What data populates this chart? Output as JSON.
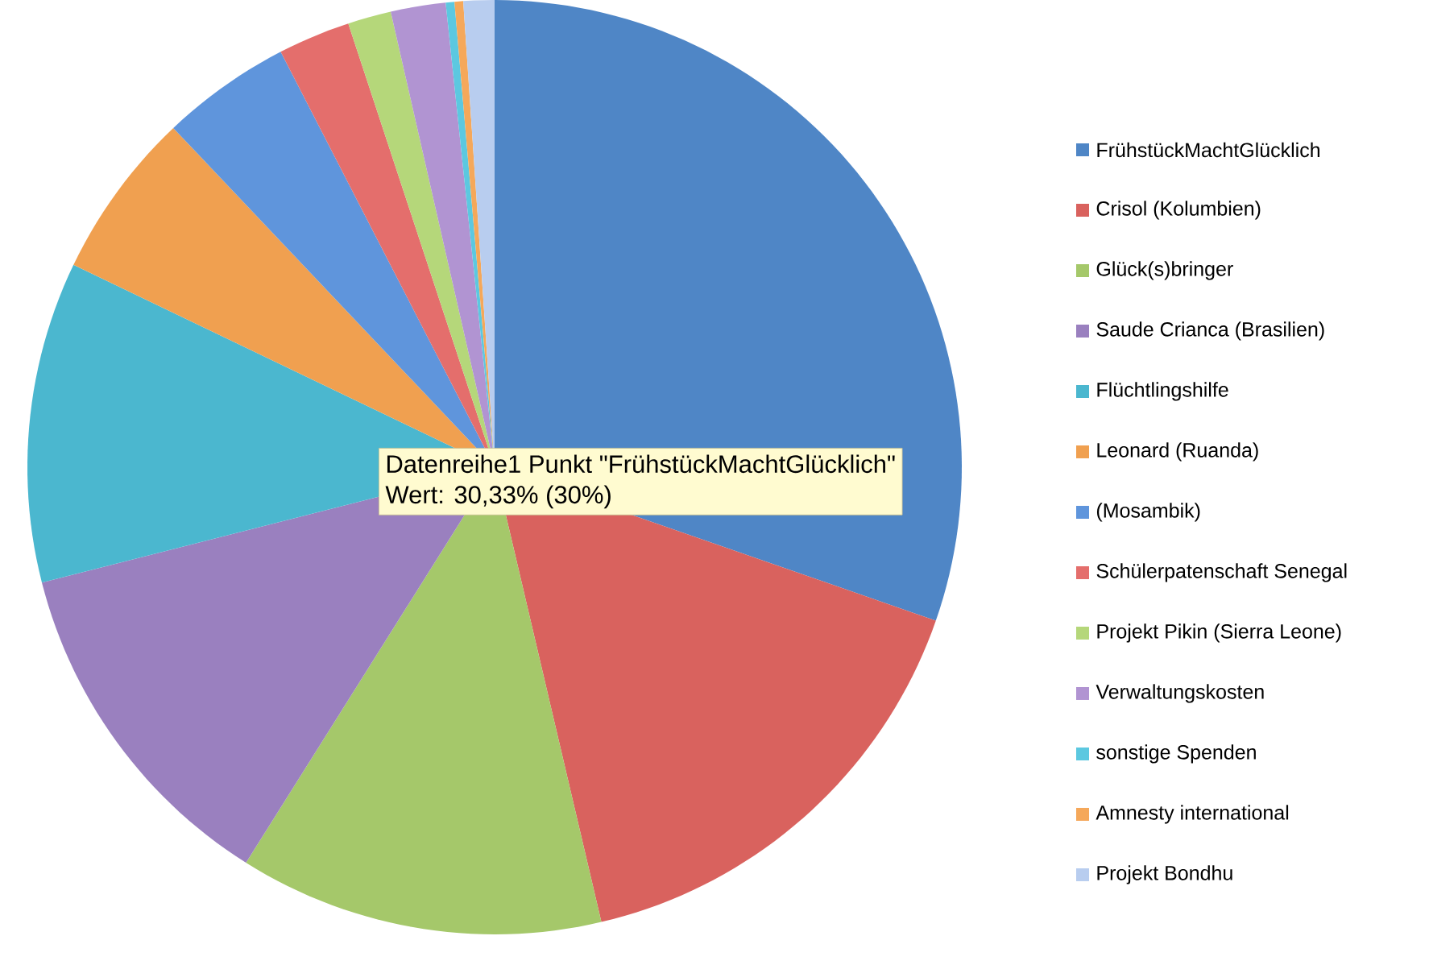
{
  "chart_data": {
    "type": "pie",
    "categories": [
      "FrühstückMachtGlücklich",
      "Crisol (Kolumbien)",
      "Glück(s)bringer",
      "Saude Crianca (Brasilien)",
      "Flüchtlingshilfe",
      "Leonard (Ruanda)",
      "(Mosambik)",
      "Schülerpatenschaft Senegal",
      "Projekt Pikin (Sierra Leone)",
      "Verwaltungskosten",
      "sonstige Spenden",
      "Amnesty international",
      "Projekt Bondhu"
    ],
    "values": [
      30.33,
      16.0,
      12.6,
      12.1,
      11.1,
      5.8,
      4.5,
      2.5,
      1.5,
      1.9,
      0.3,
      0.3,
      1.07
    ],
    "colors": [
      "#4f86c6",
      "#d9625e",
      "#a5c86a",
      "#9a80bf",
      "#4bb7cf",
      "#f0a050",
      "#5f95dc",
      "#e46e6c",
      "#b5d77a",
      "#b194d2",
      "#5cc8e0",
      "#f5a85a",
      "#b8cdef"
    ],
    "legend": "right",
    "annotations": [
      "Datenreihe1 Punkt \"FrühstückMachtGlücklich\"",
      "Wert: 30,33% (30%)"
    ]
  }
}
